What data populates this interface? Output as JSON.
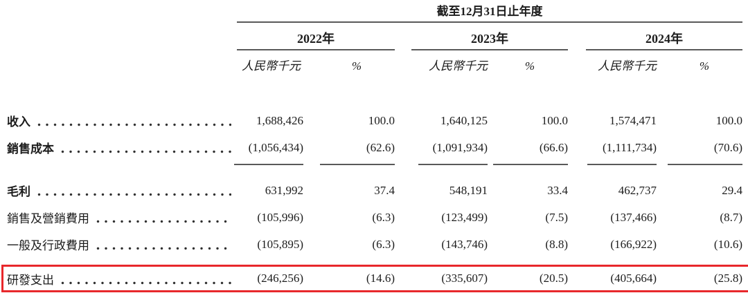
{
  "table": {
    "period_header": "截至12月31日止年度",
    "unit_label": "人民幣千元",
    "percent_label": "%",
    "year_groups": [
      {
        "year": "2022年"
      },
      {
        "year": "2023年"
      },
      {
        "year": "2024年"
      }
    ],
    "rows": [
      {
        "label": "收入",
        "bold": true,
        "subtotal_rule_below": false,
        "extra_space_above": false,
        "highlight": false,
        "values": [
          "1,688,426",
          "100.0",
          "1,640,125",
          "100.0",
          "1,574,471",
          "100.0"
        ]
      },
      {
        "label": "銷售成本",
        "bold": true,
        "subtotal_rule_below": true,
        "extra_space_above": false,
        "highlight": false,
        "values": [
          "(1,056,434)",
          "(62.6)",
          "(1,091,934)",
          "(66.6)",
          "(1,111,734)",
          "(70.6)"
        ]
      },
      {
        "label": "毛利",
        "bold": true,
        "subtotal_rule_below": false,
        "extra_space_above": true,
        "highlight": false,
        "values": [
          "631,992",
          "37.4",
          "548,191",
          "33.4",
          "462,737",
          "29.4"
        ]
      },
      {
        "label": "銷售及營銷費用",
        "bold": false,
        "subtotal_rule_below": false,
        "extra_space_above": false,
        "highlight": false,
        "values": [
          "(105,996)",
          "(6.3)",
          "(123,499)",
          "(7.5)",
          "(137,466)",
          "(8.7)"
        ]
      },
      {
        "label": "一般及行政費用",
        "bold": false,
        "subtotal_rule_below": false,
        "extra_space_above": false,
        "highlight": false,
        "values": [
          "(105,895)",
          "(6.3)",
          "(143,746)",
          "(8.8)",
          "(166,922)",
          "(10.6)"
        ]
      },
      {
        "label": "研發支出",
        "bold": false,
        "subtotal_rule_below": false,
        "extra_space_above": false,
        "highlight": true,
        "values": [
          "(246,256)",
          "(14.6)",
          "(335,607)",
          "(20.5)",
          "(405,664)",
          "(25.8)"
        ]
      }
    ],
    "highlight_color": "#e8272b",
    "rule_color": "#595959"
  }
}
